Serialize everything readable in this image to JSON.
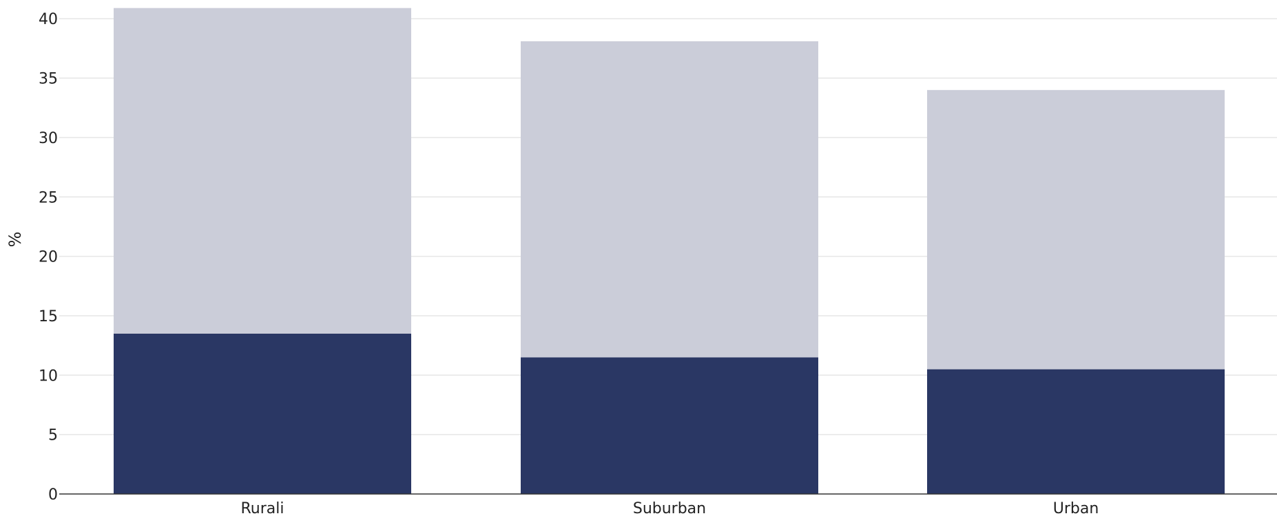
{
  "chart_data": {
    "type": "bar",
    "stacked": true,
    "categories": [
      "Rurali",
      "Suburban",
      "Urban"
    ],
    "series": [
      {
        "color": "#2a3764",
        "values": [
          13.5,
          11.5,
          10.5
        ]
      },
      {
        "color": "#cbcdd9",
        "values": [
          27.4,
          26.6,
          23.5
        ]
      }
    ],
    "totals": [
      40.9,
      38.1,
      34.0
    ],
    "ylabel": "%",
    "ylim": [
      0,
      40.5
    ],
    "yticks": [
      0,
      5,
      10,
      15,
      20,
      25,
      30,
      35,
      40
    ],
    "grid": true,
    "legend": "none"
  }
}
